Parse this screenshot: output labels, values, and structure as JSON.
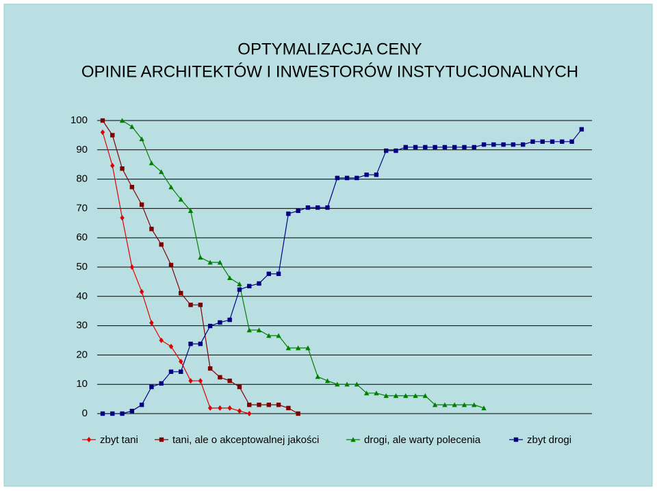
{
  "chart_data": {
    "type": "line",
    "title": [
      "OPTYMALIZACJA CENY",
      "OPINIE ARCHITEKTÓW I INWESTORÓW INSTYTUCJONALNYCH"
    ],
    "categories": [
      null,
      null,
      null,
      null,
      null,
      null,
      null,
      null,
      null,
      null,
      null,
      null,
      null,
      null,
      null,
      null,
      null,
      null,
      null,
      null,
      null,
      null,
      null,
      null,
      null,
      null,
      null,
      null,
      null,
      null,
      null,
      null,
      null,
      null,
      null,
      null,
      null,
      null,
      null,
      null,
      null,
      null,
      null,
      null,
      null,
      null,
      null,
      null,
      null,
      null
    ],
    "ylim": [
      0,
      100
    ],
    "yticks": [
      0,
      10,
      20,
      30,
      40,
      50,
      60,
      70,
      80,
      90,
      100
    ],
    "grid": true,
    "legend": "bottom",
    "series": [
      {
        "name": "zbyt tani",
        "color": "#e00000",
        "marker": "diamond",
        "values": [
          96,
          84.6,
          66.8,
          50,
          41.6,
          31,
          25,
          22.9,
          17.8,
          11.2,
          11.2,
          1.9,
          1.9,
          1.9,
          0.9,
          0,
          null,
          null,
          null,
          null,
          null,
          null,
          null,
          null,
          null,
          null,
          null,
          null,
          null,
          null,
          null,
          null,
          null,
          null,
          null,
          null,
          null,
          null,
          null,
          null,
          null,
          null,
          null,
          null,
          null,
          null,
          null,
          null,
          null,
          null
        ]
      },
      {
        "name": "tani, ale o akceptowalnej jakości",
        "color": "#800000",
        "marker": "square",
        "values": [
          100,
          95,
          83.6,
          77.3,
          71.3,
          63,
          57.7,
          50.7,
          41.1,
          37.1,
          37.1,
          15.4,
          12.4,
          11.2,
          9.1,
          3,
          3,
          3,
          3,
          1.9,
          0,
          null,
          null,
          null,
          null,
          null,
          null,
          null,
          null,
          null,
          null,
          null,
          null,
          null,
          null,
          null,
          null,
          null,
          null,
          null,
          null,
          null,
          null,
          null,
          null,
          null,
          null,
          null,
          null,
          null
        ]
      },
      {
        "name": "drogi, ale warty polecenia",
        "color": "#008000",
        "marker": "triangle",
        "values": [
          null,
          null,
          100,
          97.9,
          93.7,
          85.5,
          82.5,
          77.3,
          73.1,
          69.2,
          53.3,
          51.6,
          51.6,
          46.3,
          44.2,
          28.5,
          28.5,
          26.6,
          26.6,
          22.4,
          22.4,
          22.4,
          12.6,
          11.2,
          10,
          10,
          10,
          7,
          7,
          6.1,
          6.1,
          6.1,
          6.1,
          6.1,
          3,
          3,
          3,
          3,
          3,
          1.9,
          null,
          null,
          null,
          null,
          null,
          null,
          null,
          null,
          null,
          null
        ]
      },
      {
        "name": "zbyt drogi",
        "color": "#000080",
        "marker": "square",
        "values": [
          0,
          0,
          0,
          0.9,
          3,
          9.1,
          10.3,
          14.3,
          14.3,
          23.8,
          23.8,
          29.9,
          31.1,
          32,
          42.3,
          43.5,
          44.4,
          47.7,
          47.7,
          68.2,
          69.2,
          70.3,
          70.3,
          70.3,
          80.4,
          80.4,
          80.4,
          81.5,
          81.5,
          89.7,
          89.7,
          90.9,
          90.9,
          90.9,
          90.9,
          90.9,
          90.9,
          90.9,
          90.9,
          91.8,
          91.8,
          91.8,
          91.8,
          91.8,
          92.8,
          92.8,
          92.8,
          92.8,
          92.8,
          97
        ]
      }
    ]
  }
}
